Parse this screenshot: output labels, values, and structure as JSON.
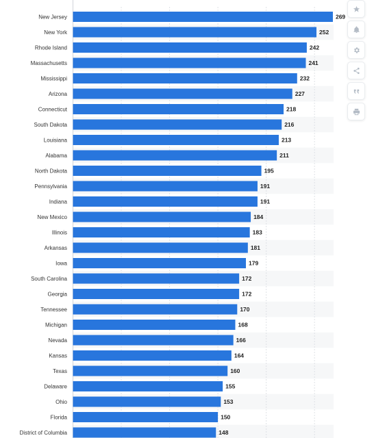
{
  "chart_data": {
    "type": "bar",
    "orientation": "horizontal",
    "title": "",
    "xlabel": "",
    "ylabel": "",
    "categories": [
      "New Jersey",
      "New York",
      "Rhode Island",
      "Massachusetts",
      "Mississippi",
      "Arizona",
      "Connecticut",
      "South Dakota",
      "Louisiana",
      "Alabama",
      "North Dakota",
      "Pennsylvania",
      "Indiana",
      "New Mexico",
      "Illinois",
      "Arkansas",
      "Iowa",
      "South Carolina",
      "Georgia",
      "Tennessee",
      "Michigan",
      "Nevada",
      "Kansas",
      "Texas",
      "Delaware",
      "Ohio",
      "Florida",
      "District of Columbia"
    ],
    "values": [
      269,
      252,
      242,
      241,
      232,
      227,
      218,
      216,
      213,
      211,
      195,
      191,
      191,
      184,
      183,
      181,
      179,
      172,
      172,
      170,
      168,
      166,
      164,
      160,
      155,
      153,
      150,
      148
    ],
    "xlim": [
      0,
      300
    ],
    "grid": true,
    "bar_color": "#2876dd"
  },
  "toolbar": {
    "buttons": [
      {
        "name": "favorite-button",
        "icon": "star-icon"
      },
      {
        "name": "notification-button",
        "icon": "bell-icon"
      },
      {
        "name": "settings-button",
        "icon": "gear-icon"
      },
      {
        "name": "share-button",
        "icon": "share-icon"
      },
      {
        "name": "cite-button",
        "icon": "quote-icon"
      },
      {
        "name": "print-button",
        "icon": "print-icon"
      }
    ]
  }
}
